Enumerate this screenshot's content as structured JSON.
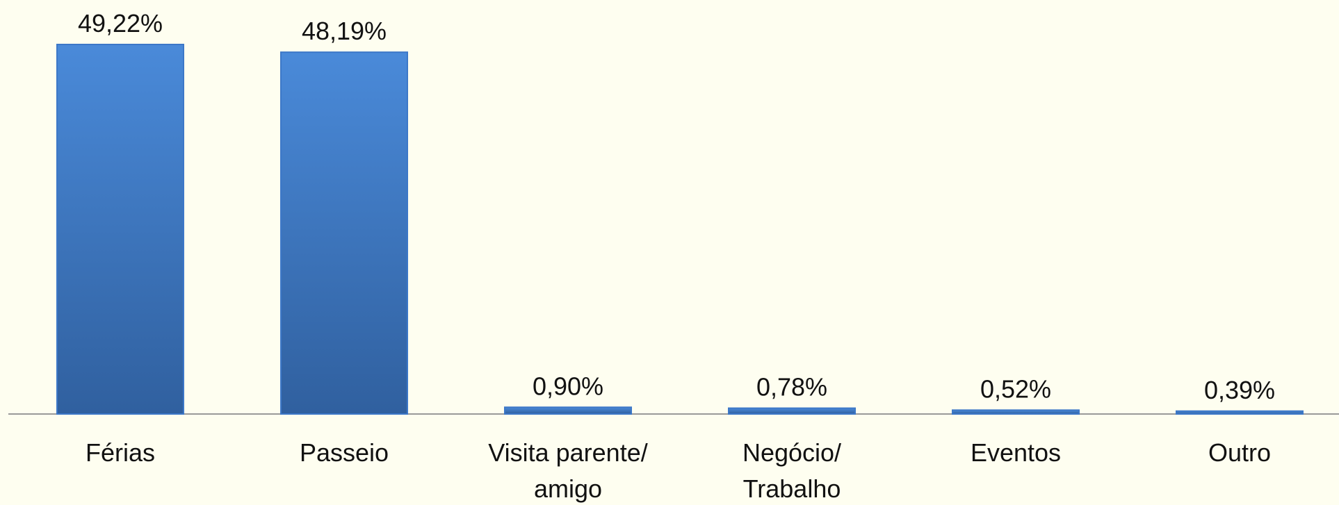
{
  "chart_data": {
    "type": "bar",
    "categories": [
      "Férias",
      "Passeio",
      "Visita parente/\namigo",
      "Negócio/\nTrabalho",
      "Eventos",
      "Outro"
    ],
    "values": [
      49.22,
      48.19,
      0.9,
      0.78,
      0.52,
      0.39
    ],
    "value_labels": [
      "49,22%",
      "48,19%",
      "0,90%",
      "0,78%",
      "0,52%",
      "0,39%"
    ],
    "color": "#3d78c8"
  }
}
